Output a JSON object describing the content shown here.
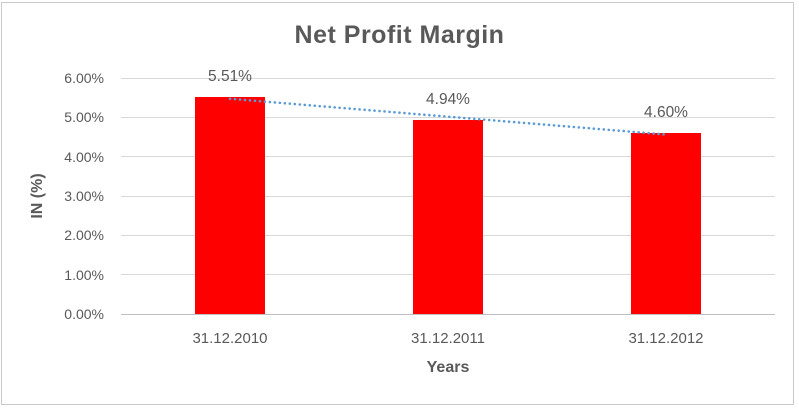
{
  "frame": {
    "background": "#ffffff",
    "border_color": "#c9c9c9"
  },
  "chart_data": {
    "type": "bar",
    "title": "Net Profit Margin",
    "categories": [
      "31.12.2010",
      "31.12.2011",
      "31.12.2012"
    ],
    "series": [
      {
        "name": "Net Profit Margin",
        "values": [
          5.51,
          4.94,
          4.6
        ]
      }
    ],
    "data_labels": [
      "5.51%",
      "4.94%",
      "4.60%"
    ],
    "xlabel": "Years",
    "ylabel": "IN (%)",
    "ylim": [
      0,
      6
    ],
    "y_ticks": [
      0,
      1,
      2,
      3,
      4,
      5,
      6
    ],
    "y_tick_labels": [
      "0.00%",
      "1.00%",
      "2.00%",
      "3.00%",
      "4.00%",
      "5.00%",
      "6.00%"
    ],
    "grid": true,
    "legend": "none",
    "trendline": {
      "type": "linear",
      "style": "dotted"
    },
    "colors": {
      "bar": "#ff0000",
      "trendline": "#5b9bd5",
      "text": "#595959",
      "title": "#595959",
      "gridline": "#d9d9d9",
      "axis_line": "#bfbfbf"
    }
  }
}
